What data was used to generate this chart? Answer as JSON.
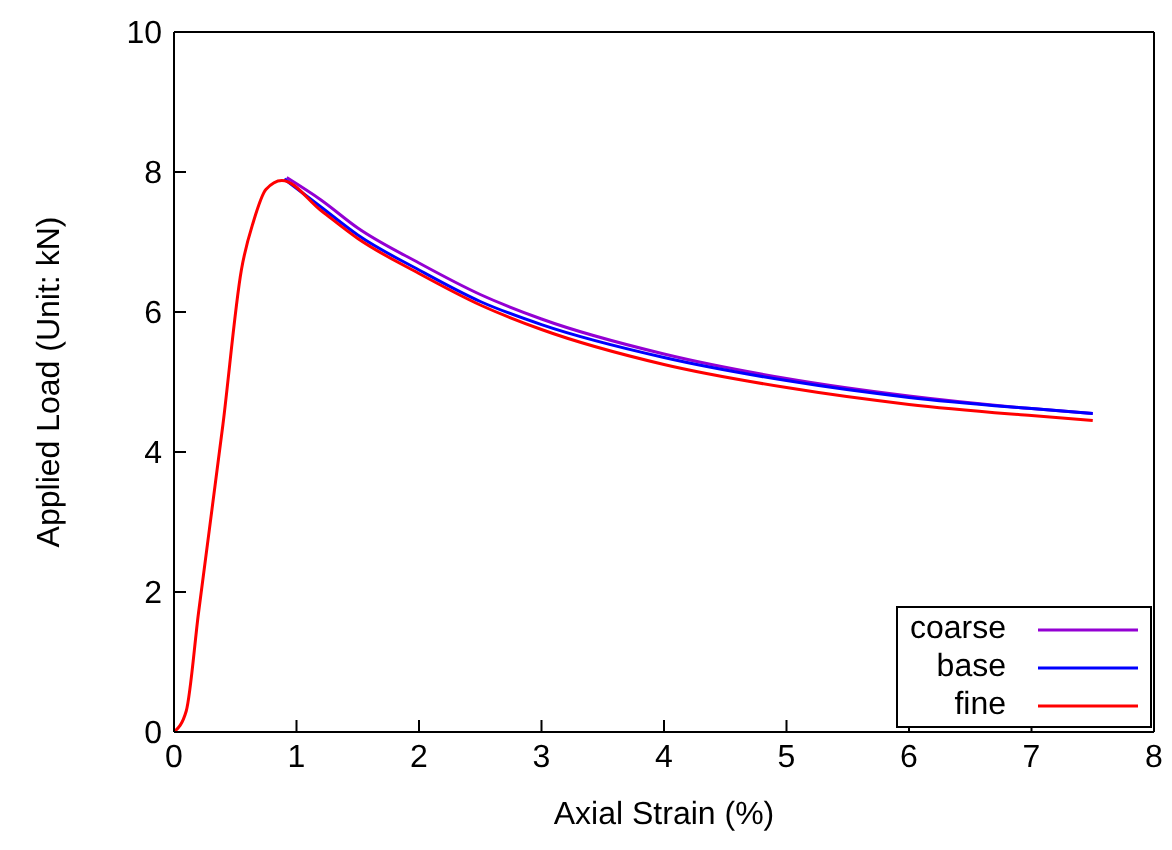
{
  "chart_data": {
    "type": "line",
    "xlabel": "Axial Strain (%)",
    "ylabel": "Applied Load (Unit: kN)",
    "xlim": [
      0,
      8
    ],
    "xticks": [
      0,
      1,
      2,
      3,
      4,
      5,
      6,
      7,
      8
    ],
    "ylim": [
      0,
      10
    ],
    "yticks": [
      0,
      2,
      4,
      6,
      8,
      10
    ],
    "legend": "bottom right",
    "marker": "none",
    "line_style": "solid",
    "series": [
      {
        "name": "coarse",
        "color": "#9400d3",
        "x": [
          0.92,
          1.2,
          1.5,
          2,
          2.5,
          3,
          4,
          5,
          6,
          7,
          7.5
        ],
        "values": [
          7.92,
          7.6,
          7.2,
          6.7,
          6.25,
          5.9,
          5.4,
          5.05,
          4.8,
          4.62,
          4.55
        ]
      },
      {
        "name": "base",
        "color": "#0000ff",
        "x": [
          0.9,
          1.2,
          1.5,
          2,
          2.5,
          3,
          4,
          5,
          6,
          7,
          7.5
        ],
        "values": [
          7.9,
          7.5,
          7.1,
          6.6,
          6.15,
          5.82,
          5.35,
          5.02,
          4.78,
          4.62,
          4.55
        ]
      },
      {
        "name": "fine",
        "color": "#ff0000",
        "x": [
          0,
          0.1,
          0.2,
          0.4,
          0.55,
          0.65,
          0.75,
          0.88,
          1.2,
          1.5,
          2,
          2.5,
          3,
          4,
          5,
          6,
          7,
          7.5
        ],
        "values": [
          0,
          0.3,
          1.7,
          4.4,
          6.6,
          7.3,
          7.75,
          7.88,
          7.45,
          7.05,
          6.55,
          6.1,
          5.75,
          5.25,
          4.92,
          4.68,
          4.52,
          4.45
        ]
      }
    ]
  }
}
